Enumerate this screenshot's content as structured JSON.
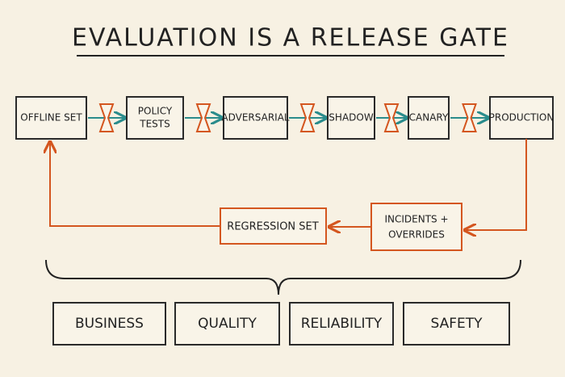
{
  "header": {
    "title": "EVALUATION IS A RELEASE GATE"
  },
  "pipeline": [
    {
      "label": [
        "OFFLINE SET"
      ]
    },
    {
      "label": [
        "POLICY",
        "TESTS"
      ]
    },
    {
      "label": [
        "ADVERSARIAL"
      ]
    },
    {
      "label": [
        "SHADOW"
      ]
    },
    {
      "label": [
        "CANARY"
      ]
    },
    {
      "label": [
        "PRODUCTION"
      ]
    }
  ],
  "feedback": [
    {
      "label": [
        "INCIDENTS +",
        "OVERRIDES"
      ]
    },
    {
      "label": [
        "REGRESSION SET"
      ]
    }
  ],
  "dimensions": [
    "BUSINESS",
    "QUALITY",
    "RELIABILITY",
    "SAFETY"
  ]
}
